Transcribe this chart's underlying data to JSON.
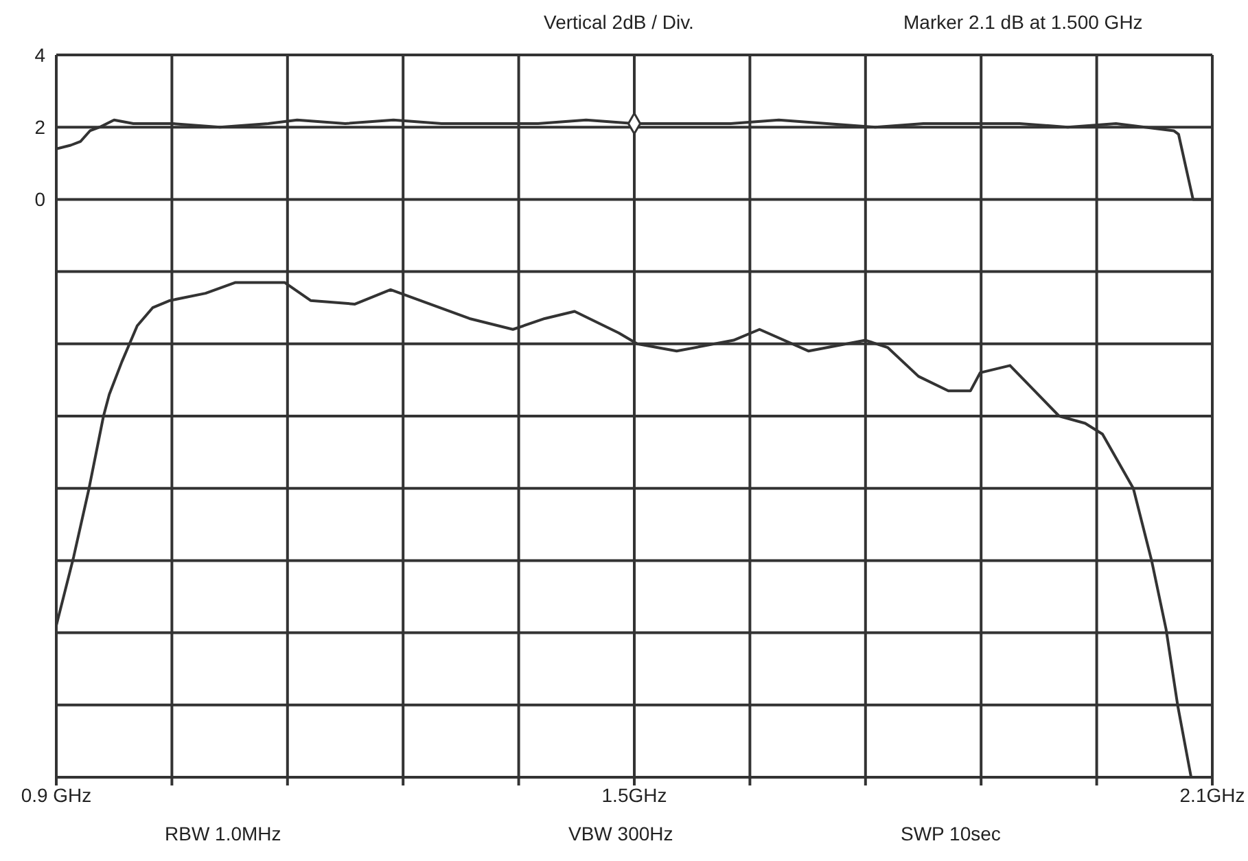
{
  "chart_data": {
    "type": "line",
    "annotations": [
      "Vertical  2dB / Div.",
      "Marker  2.1 dB at 1.500 GHz",
      "RBW  1.0MHz",
      "VBW  300Hz",
      "SWP  10sec"
    ],
    "xlim": [
      0.9,
      2.1
    ],
    "xticks": [
      {
        "value": 0.9,
        "label": "0.9 GHz"
      },
      {
        "value": 1.02,
        "label": null
      },
      {
        "value": 1.14,
        "label": null
      },
      {
        "value": 1.26,
        "label": null
      },
      {
        "value": 1.38,
        "label": null
      },
      {
        "value": 1.5,
        "label": "1.5GHz"
      },
      {
        "value": 1.62,
        "label": null
      },
      {
        "value": 1.74,
        "label": null
      },
      {
        "value": 1.86,
        "label": null
      },
      {
        "value": 1.98,
        "label": null
      },
      {
        "value": 2.1,
        "label": "2.1GHz"
      }
    ],
    "ylim": [
      -16,
      4
    ],
    "yticks": [
      4,
      2,
      0,
      {
        "value": -2,
        "label": null
      },
      {
        "value": -4,
        "label": null
      },
      {
        "value": -6,
        "label": null
      },
      {
        "value": -8,
        "label": null
      },
      {
        "value": -10,
        "label": null
      },
      {
        "value": -12,
        "label": null
      },
      {
        "value": -14,
        "label": null
      },
      {
        "value": -16,
        "label": null
      }
    ],
    "grid": true,
    "series": [
      {
        "color": "#333333",
        "x": [
          0.9,
          0.915,
          0.925,
          0.935,
          0.945,
          0.96,
          0.98,
          1.02,
          1.07,
          1.12,
          1.15,
          1.2,
          1.25,
          1.3,
          1.35,
          1.4,
          1.45,
          1.5,
          1.55,
          1.6,
          1.65,
          1.7,
          1.75,
          1.8,
          1.85,
          1.9,
          1.95,
          2.0,
          2.03,
          2.06,
          2.065,
          2.075,
          2.08,
          2.1
        ],
        "values": [
          1.4,
          1.5,
          1.6,
          1.9,
          2.0,
          2.2,
          2.1,
          2.1,
          2.0,
          2.1,
          2.2,
          2.1,
          2.2,
          2.1,
          2.1,
          2.1,
          2.2,
          2.1,
          2.1,
          2.1,
          2.2,
          2.1,
          2.0,
          2.1,
          2.1,
          2.1,
          2.0,
          2.1,
          2.0,
          1.9,
          1.8,
          0.6,
          0.0,
          0.0
        ]
      },
      {
        "color": "#333333",
        "x": [
          0.9,
          0.918,
          0.934,
          0.949,
          0.955,
          0.968,
          0.984,
          1.0,
          1.018,
          1.055,
          1.086,
          1.137,
          1.164,
          1.21,
          1.247,
          1.288,
          1.329,
          1.374,
          1.407,
          1.438,
          1.484,
          1.503,
          1.544,
          1.603,
          1.63,
          1.681,
          1.74,
          1.763,
          1.795,
          1.826,
          1.849,
          1.859,
          1.89,
          1.941,
          1.968,
          1.986,
          2.018,
          2.037,
          2.052,
          2.064,
          2.078,
          2.1
        ],
        "values": [
          -11.8,
          -9.9,
          -8.0,
          -6.0,
          -5.4,
          -4.5,
          -3.5,
          -3.0,
          -2.8,
          -2.6,
          -2.3,
          -2.3,
          -2.8,
          -2.9,
          -2.5,
          -2.9,
          -3.3,
          -3.6,
          -3.3,
          -3.1,
          -3.7,
          -4.0,
          -4.2,
          -3.9,
          -3.6,
          -4.2,
          -3.9,
          -4.1,
          -4.9,
          -5.3,
          -5.3,
          -4.8,
          -4.6,
          -6.0,
          -6.2,
          -6.5,
          -8.0,
          -10.0,
          -11.9,
          -14.0,
          -16.0,
          -16.0
        ]
      },
      {
        "type": "scatter",
        "marker": "diamond",
        "color": "#333333",
        "x": [
          1.5
        ],
        "values": [
          2.1
        ]
      }
    ]
  }
}
